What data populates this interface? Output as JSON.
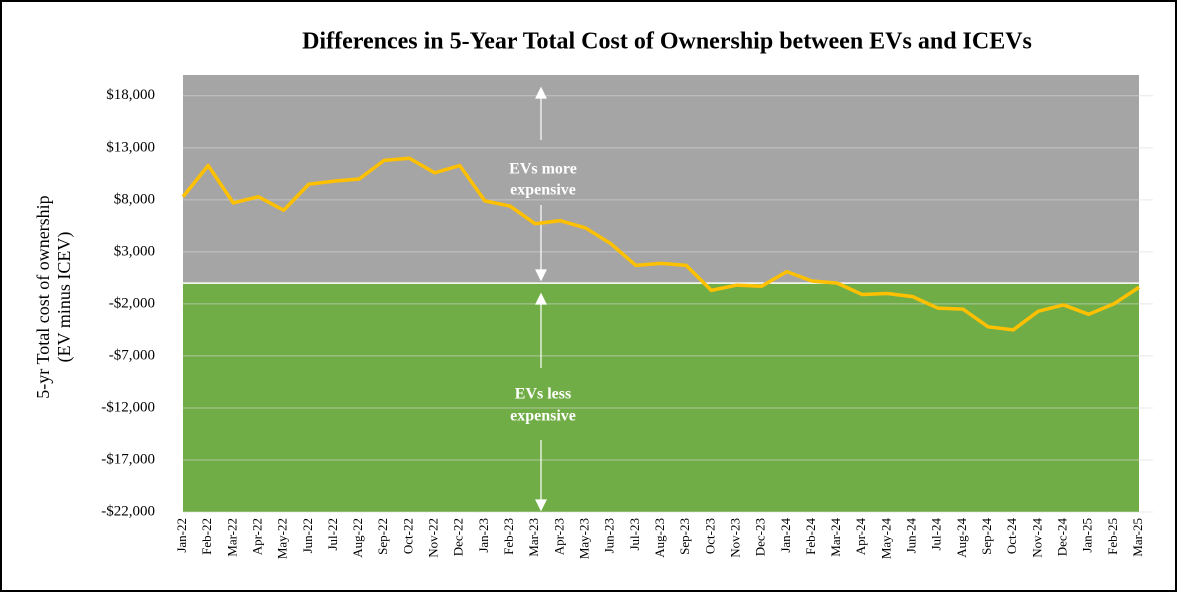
{
  "chart_data": {
    "type": "line",
    "title": "Differences in 5-Year Total Cost of Ownership between EVs and ICEVs",
    "y_label": [
      "5-yr Total cost of ownership",
      "(EV minus ICEV)"
    ],
    "annotations": [
      [
        "EVs more",
        "expensive"
      ],
      [
        "EVs less",
        "expensive"
      ]
    ],
    "categories": [
      "Jan-22",
      "Feb-22",
      "Mar-22",
      "Apr-22",
      "May-22",
      "Jun-22",
      "Jul-22",
      "Aug-22",
      "Sep-22",
      "Oct-22",
      "Nov-22",
      "Dec-22",
      "Jan-23",
      "Feb-23",
      "Mar-23",
      "Apr-23",
      "May-23",
      "Jun-23",
      "Jul-23",
      "Aug-23",
      "Sep-23",
      "Oct-23",
      "Nov-23",
      "Dec-23",
      "Jan-24",
      "Feb-24",
      "Mar-24",
      "Apr-24",
      "May-24",
      "Jun-24",
      "Jul-24",
      "Aug-24",
      "Sep-24",
      "Oct-24",
      "Nov-24",
      "Dec-24",
      "Jan-25",
      "Feb-25",
      "Mar-25"
    ],
    "values": [
      8300,
      11300,
      7700,
      8300,
      7000,
      9500,
      9800,
      10000,
      11800,
      12000,
      10600,
      11300,
      7900,
      7400,
      5700,
      6000,
      5300,
      3800,
      1700,
      1900,
      1700,
      -700,
      -200,
      -300,
      1100,
      200,
      0,
      -1100,
      -1000,
      -1300,
      -2400,
      -2500,
      -4200,
      -4500,
      -2700,
      -2100,
      -3000,
      -2000,
      -400
    ],
    "color": "#ffc000",
    "above_color": "#a5a5a5",
    "below_color": "#70ad47",
    "ylim": [
      -22000,
      20000
    ],
    "yticks": [
      {
        "value": -22000,
        "label": "-$22,000"
      },
      {
        "value": -17000,
        "label": "-$17,000"
      },
      {
        "value": -12000,
        "label": "-$12,000"
      },
      {
        "value": -7000,
        "label": "-$7,000"
      },
      {
        "value": -2000,
        "label": "-$2,000"
      },
      {
        "value": 3000,
        "label": "$3,000"
      },
      {
        "value": 8000,
        "label": "$8,000"
      },
      {
        "value": 13000,
        "label": "$13,000"
      },
      {
        "value": 18000,
        "label": "$18,000"
      }
    ],
    "grid": true
  }
}
